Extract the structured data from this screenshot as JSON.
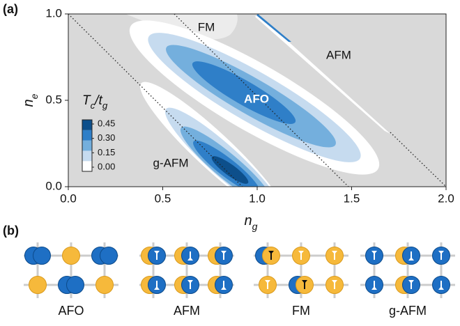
{
  "panel_a": {
    "label": "(a)",
    "x_label": [
      "n",
      "g"
    ],
    "y_label": [
      "n",
      "e"
    ],
    "xlim": [
      0,
      2
    ],
    "ylim": [
      0,
      1
    ],
    "xticks": [
      {
        "value": 0,
        "label": "0.0"
      },
      {
        "value": 0.5,
        "label": "0.5"
      },
      {
        "value": 1,
        "label": "1.0"
      },
      {
        "value": 1.5,
        "label": "1.5"
      },
      {
        "value": 2,
        "label": "2.0"
      }
    ],
    "yticks": [
      {
        "value": 0,
        "label": "0.0"
      },
      {
        "value": 0.5,
        "label": "0.5"
      },
      {
        "value": 1,
        "label": "1.0"
      }
    ],
    "colorbar_title": [
      "T",
      "c",
      "/t",
      "g"
    ],
    "colorbar_ticks": [
      {
        "value": 0,
        "label": "0.00"
      },
      {
        "value": 0.15,
        "label": "0.15"
      },
      {
        "value": 0.3,
        "label": "0.30"
      },
      {
        "value": 0.45,
        "label": "0.45"
      }
    ],
    "colors": [
      "#ffffff",
      "#c6dbef",
      "#74afdd",
      "#2f7fc8",
      "#0d4f8b"
    ],
    "regions": [
      "FM",
      "AFM",
      "AFO",
      "g-AFM"
    ]
  },
  "panel_b": {
    "label": "(b)",
    "orders": [
      "AFO",
      "AFM",
      "FM",
      "g-AFM"
    ]
  }
}
